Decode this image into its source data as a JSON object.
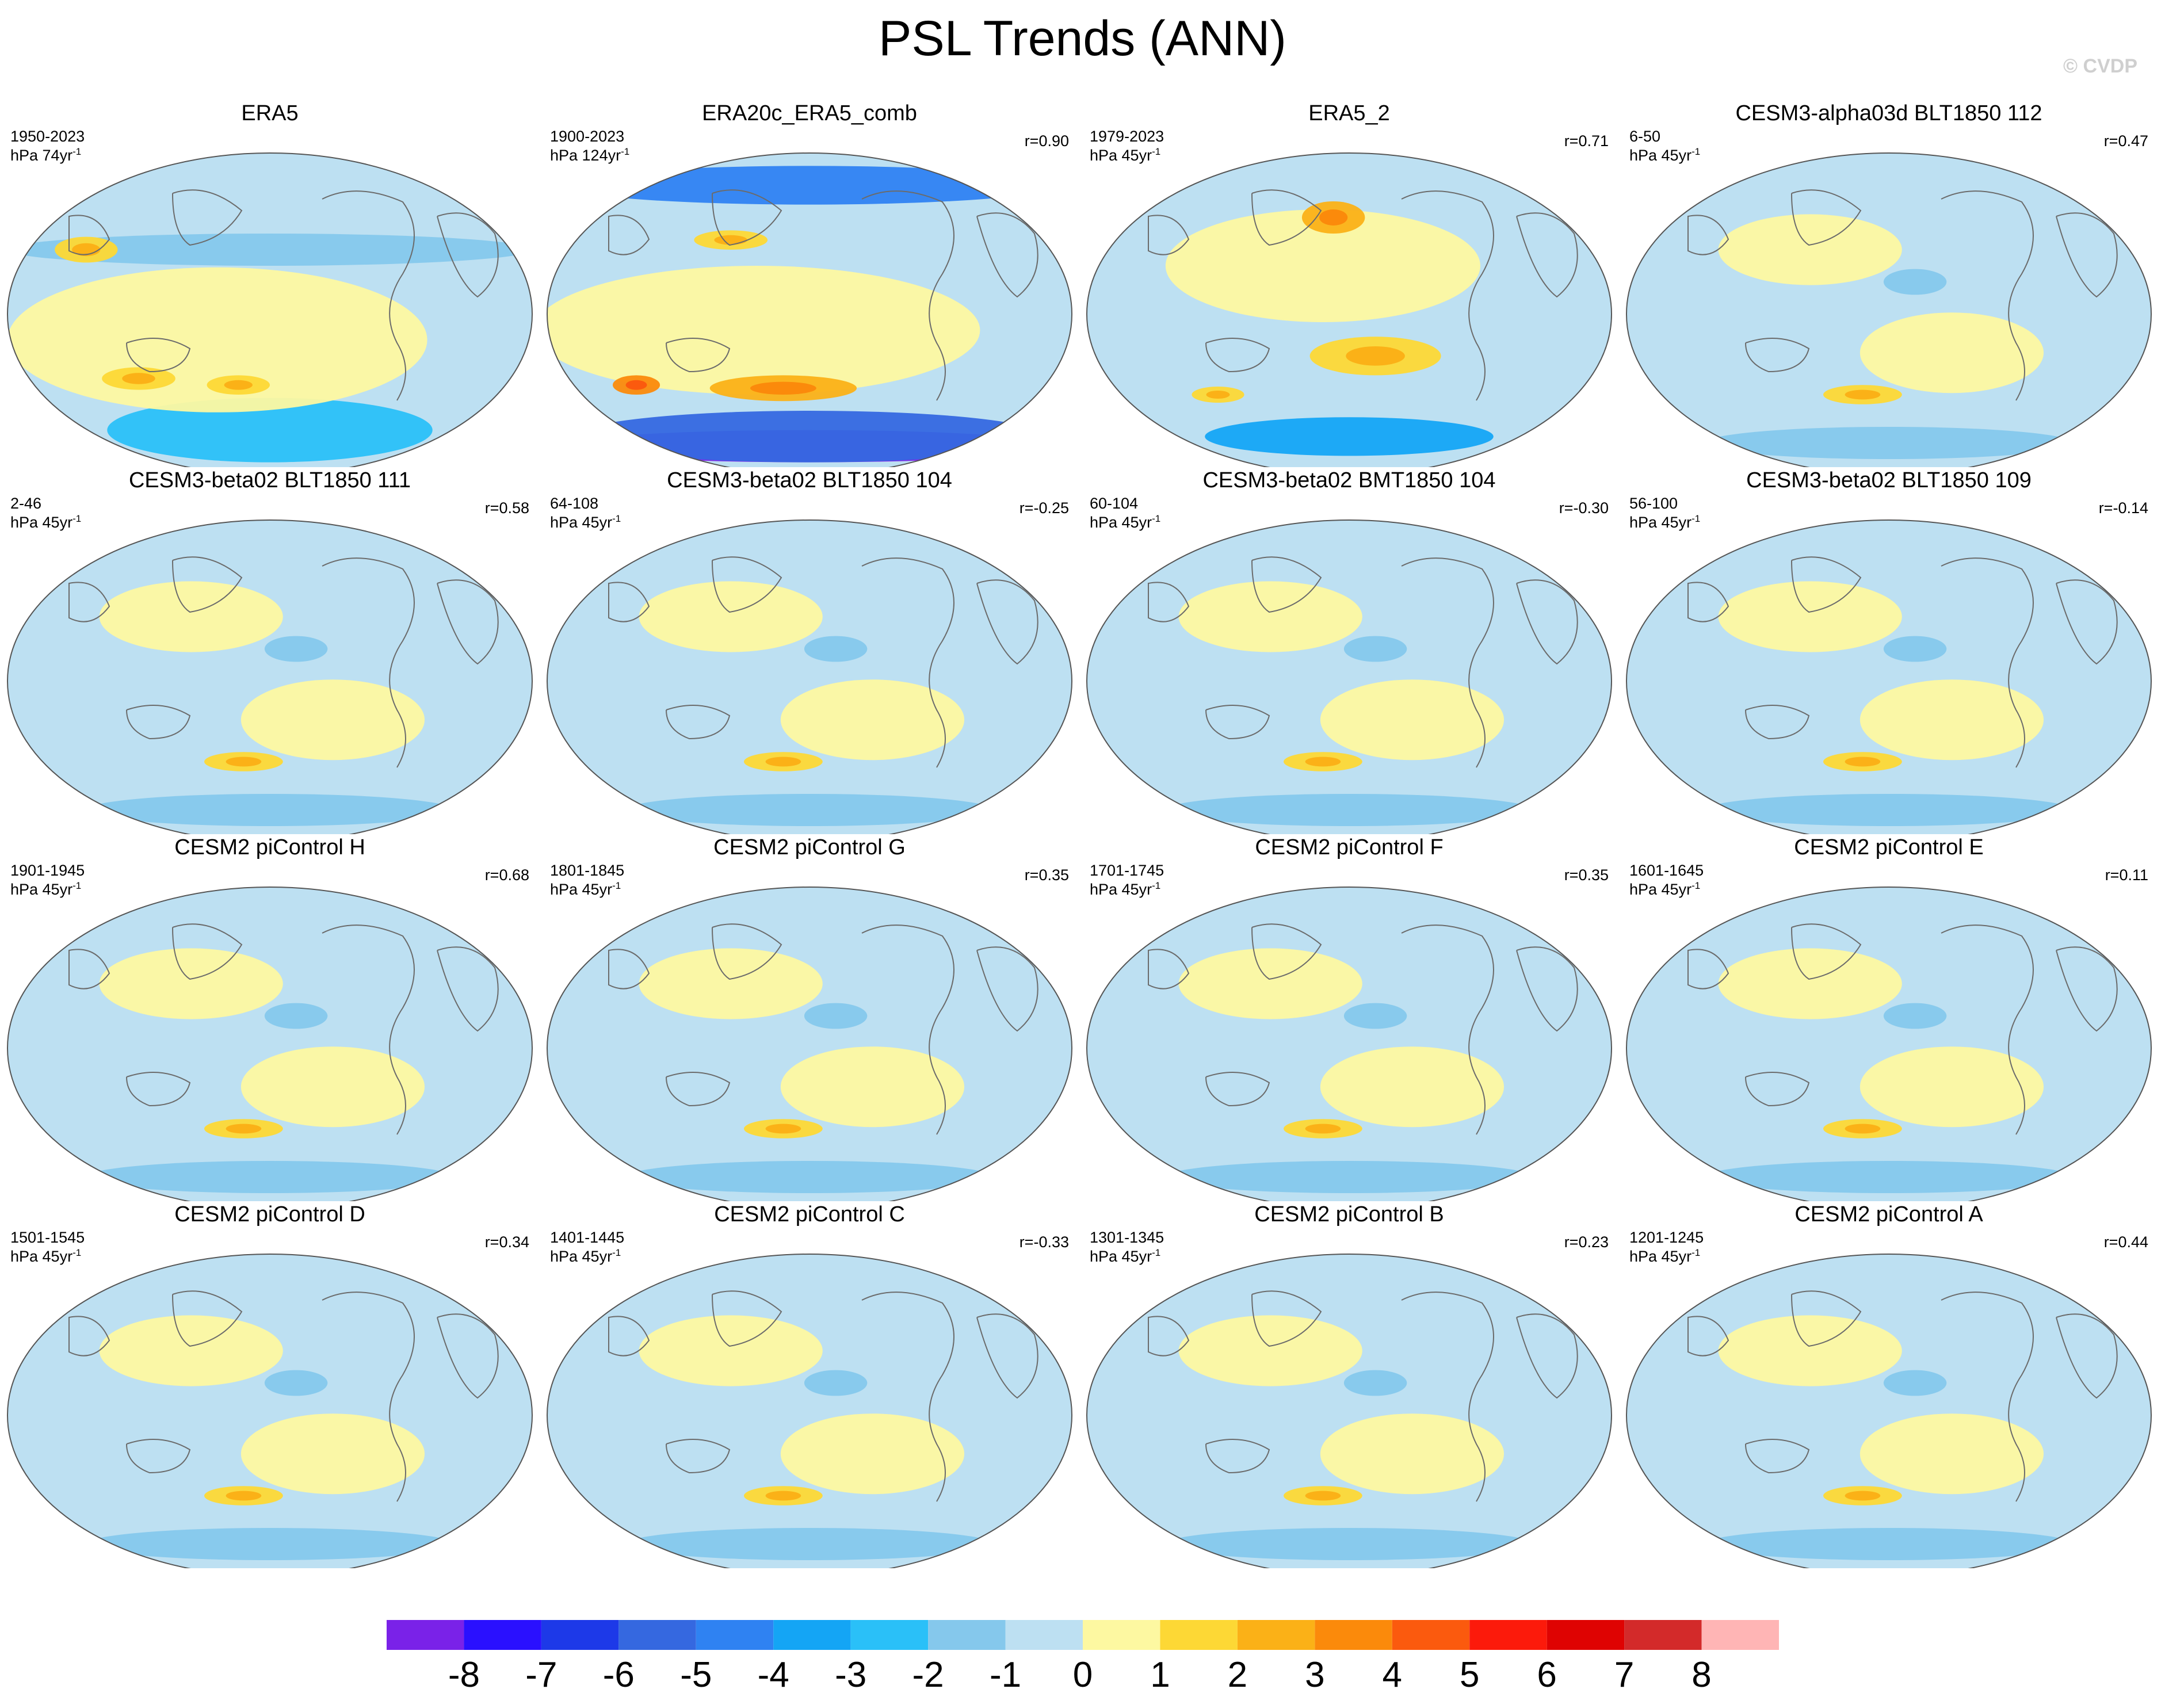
{
  "title": "PSL Trends (ANN)",
  "watermark": "© CVDP",
  "colorbar": {
    "labels": [
      "-8",
      "-7",
      "-6",
      "-5",
      "-4",
      "-3",
      "-2",
      "-1",
      "0",
      "1",
      "2",
      "3",
      "4",
      "5",
      "6",
      "7",
      "8"
    ],
    "colors": [
      "#7a22e8",
      "#2a10ff",
      "#1d39e8",
      "#3568e0",
      "#2f82f2",
      "#14a5f5",
      "#2ac0f8",
      "#85c8ec",
      "#bde0f2",
      "#fdf8a1",
      "#fdd835",
      "#fbb117",
      "#fb8a0b",
      "#fb5a0e",
      "#fc1a0b",
      "#df0302",
      "#d32a2a",
      "#ffb5b5"
    ]
  },
  "panels": [
    {
      "title": "ERA5",
      "years": "1950-2023",
      "units": "hPa 74yr",
      "r": "",
      "style": "era5"
    },
    {
      "title": "ERA20c_ERA5_comb",
      "years": "1900-2023",
      "units": "hPa 124yr",
      "r": "r=0.90",
      "style": "era20c"
    },
    {
      "title": "ERA5_2",
      "years": "1979-2023",
      "units": "hPa 45yr",
      "r": "r=0.71",
      "style": "era5b"
    },
    {
      "title": "CESM3-alpha03d BLT1850 112",
      "years": "6-50",
      "units": "hPa 45yr",
      "r": "r=0.47",
      "style": "model"
    },
    {
      "title": "CESM3-beta02 BLT1850 111",
      "years": "2-46",
      "units": "hPa 45yr",
      "r": "r=0.58",
      "style": "model"
    },
    {
      "title": "CESM3-beta02 BLT1850 104",
      "years": "64-108",
      "units": "hPa 45yr",
      "r": "r=-0.25",
      "style": "model"
    },
    {
      "title": "CESM3-beta02 BMT1850 104",
      "years": "60-104",
      "units": "hPa 45yr",
      "r": "r=-0.30",
      "style": "model"
    },
    {
      "title": "CESM3-beta02 BLT1850 109",
      "years": "56-100",
      "units": "hPa 45yr",
      "r": "r=-0.14",
      "style": "model"
    },
    {
      "title": "CESM2 piControl H",
      "years": "1901-1945",
      "units": "hPa 45yr",
      "r": "r=0.68",
      "style": "model"
    },
    {
      "title": "CESM2 piControl G",
      "years": "1801-1845",
      "units": "hPa 45yr",
      "r": "r=0.35",
      "style": "model"
    },
    {
      "title": "CESM2 piControl F",
      "years": "1701-1745",
      "units": "hPa 45yr",
      "r": "r=0.35",
      "style": "model"
    },
    {
      "title": "CESM2 piControl E",
      "years": "1601-1645",
      "units": "hPa 45yr",
      "r": "r=0.11",
      "style": "model"
    },
    {
      "title": "CESM2 piControl D",
      "years": "1501-1545",
      "units": "hPa 45yr",
      "r": "r=0.34",
      "style": "model"
    },
    {
      "title": "CESM2 piControl C",
      "years": "1401-1445",
      "units": "hPa 45yr",
      "r": "r=-0.33",
      "style": "model"
    },
    {
      "title": "CESM2 piControl B",
      "years": "1301-1345",
      "units": "hPa 45yr",
      "r": "r=0.23",
      "style": "model"
    },
    {
      "title": "CESM2 piControl A",
      "years": "1201-1245",
      "units": "hPa 45yr",
      "r": "r=0.44",
      "style": "model"
    }
  ],
  "units_superscript": "-1"
}
